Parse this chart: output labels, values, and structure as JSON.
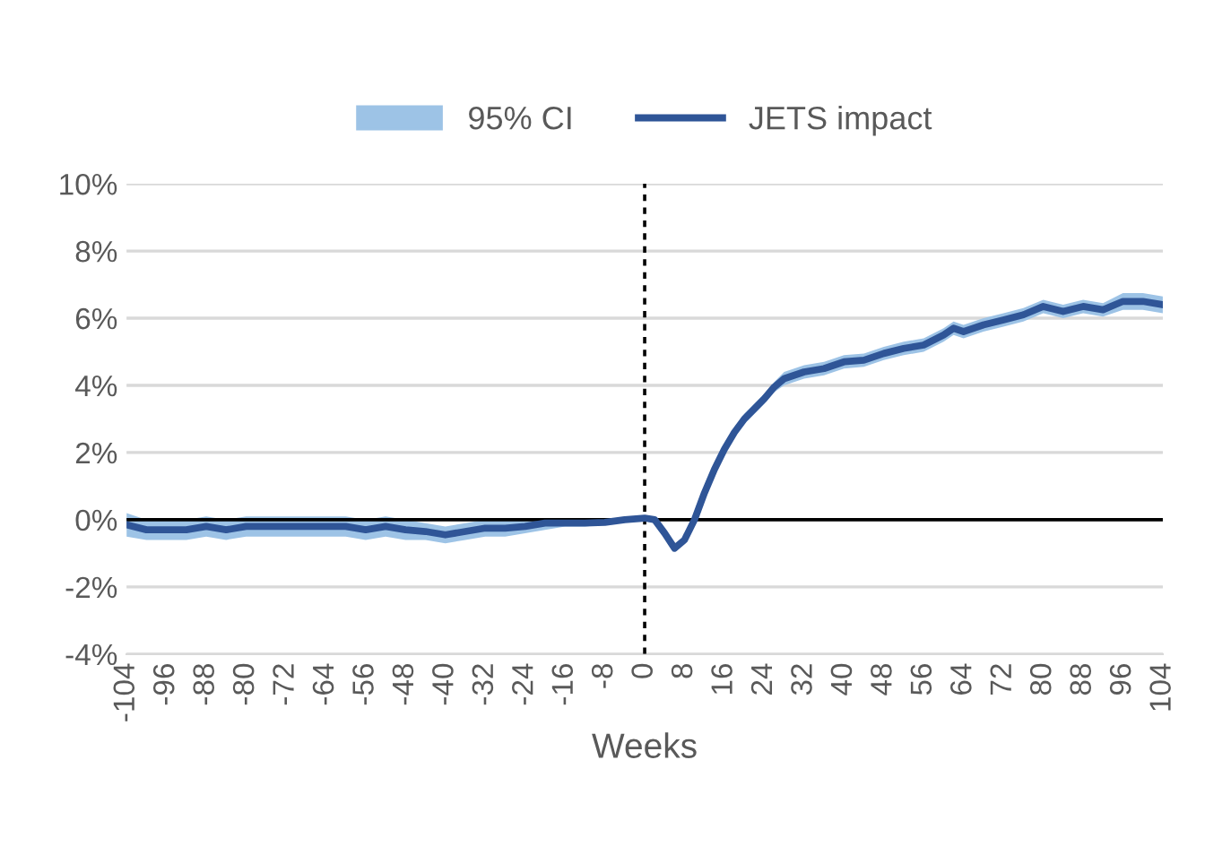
{
  "chart_data": {
    "type": "line",
    "xlabel": "Weeks",
    "x": [
      -104,
      -100,
      -96,
      -92,
      -88,
      -84,
      -80,
      -76,
      -72,
      -68,
      -64,
      -60,
      -56,
      -52,
      -48,
      -44,
      -40,
      -36,
      -32,
      -28,
      -24,
      -20,
      -16,
      -12,
      -8,
      -4,
      0,
      2,
      4,
      6,
      8,
      10,
      12,
      14,
      16,
      18,
      20,
      22,
      24,
      26,
      28,
      30,
      32,
      36,
      40,
      44,
      48,
      52,
      56,
      60,
      62,
      64,
      68,
      72,
      76,
      80,
      84,
      88,
      92,
      96,
      100,
      104
    ],
    "series": [
      {
        "name": "JETS impact",
        "color": "#2f5597",
        "values": [
          -0.15,
          -0.3,
          -0.3,
          -0.3,
          -0.2,
          -0.3,
          -0.2,
          -0.2,
          -0.2,
          -0.2,
          -0.2,
          -0.2,
          -0.3,
          -0.2,
          -0.3,
          -0.35,
          -0.45,
          -0.35,
          -0.25,
          -0.25,
          -0.2,
          -0.1,
          -0.1,
          -0.1,
          -0.08,
          0.0,
          0.05,
          0.0,
          -0.4,
          -0.85,
          -0.6,
          0.0,
          0.8,
          1.5,
          2.1,
          2.6,
          3.0,
          3.3,
          3.6,
          3.95,
          4.2,
          4.3,
          4.4,
          4.5,
          4.7,
          4.75,
          4.95,
          5.1,
          5.2,
          5.5,
          5.7,
          5.6,
          5.8,
          5.95,
          6.1,
          6.35,
          6.2,
          6.35,
          6.25,
          6.5,
          6.5,
          6.4
        ],
        "lower": [
          -0.5,
          -0.6,
          -0.6,
          -0.6,
          -0.5,
          -0.6,
          -0.5,
          -0.5,
          -0.5,
          -0.5,
          -0.5,
          -0.5,
          -0.6,
          -0.5,
          -0.6,
          -0.6,
          -0.7,
          -0.6,
          -0.5,
          -0.5,
          -0.4,
          -0.3,
          -0.2,
          -0.2,
          -0.15,
          -0.05,
          0.0,
          -0.05,
          -0.45,
          -0.9,
          -0.65,
          -0.1,
          0.65,
          1.35,
          1.95,
          2.45,
          2.85,
          3.15,
          3.45,
          3.8,
          4.0,
          4.1,
          4.2,
          4.3,
          4.5,
          4.55,
          4.75,
          4.9,
          5.0,
          5.3,
          5.5,
          5.4,
          5.6,
          5.75,
          5.9,
          6.15,
          6.0,
          6.15,
          6.05,
          6.25,
          6.25,
          6.15
        ],
        "upper": [
          0.2,
          0.0,
          0.0,
          0.0,
          0.1,
          0.0,
          0.1,
          0.1,
          0.1,
          0.1,
          0.1,
          0.1,
          0.0,
          0.1,
          0.0,
          -0.1,
          -0.2,
          -0.1,
          0.0,
          0.0,
          0.0,
          0.05,
          0.0,
          0.0,
          0.0,
          0.05,
          0.1,
          0.05,
          -0.35,
          -0.8,
          -0.55,
          0.1,
          0.95,
          1.65,
          2.25,
          2.75,
          3.15,
          3.45,
          3.75,
          4.1,
          4.4,
          4.5,
          4.6,
          4.7,
          4.9,
          4.95,
          5.15,
          5.3,
          5.4,
          5.7,
          5.9,
          5.8,
          6.0,
          6.15,
          6.3,
          6.55,
          6.4,
          6.55,
          6.45,
          6.75,
          6.75,
          6.65
        ]
      }
    ],
    "annotations": [
      "95% CI"
    ],
    "xlim": [
      -104,
      104
    ],
    "xticks": [
      -104,
      -96,
      -88,
      -80,
      -72,
      -64,
      -56,
      -48,
      -40,
      -32,
      -24,
      -16,
      -8,
      0,
      8,
      16,
      24,
      32,
      40,
      48,
      56,
      64,
      72,
      80,
      88,
      96,
      104
    ],
    "ylim": [
      -4,
      10
    ],
    "yticks": [
      {
        "value": -4,
        "label": "-4%"
      },
      {
        "value": -2,
        "label": "-2%"
      },
      {
        "value": 0,
        "label": "0%"
      },
      {
        "value": 2,
        "label": "2%"
      },
      {
        "value": 4,
        "label": "4%"
      },
      {
        "value": 6,
        "label": "6%"
      },
      {
        "value": 8,
        "label": "8%"
      },
      {
        "value": 10,
        "label": "10%"
      }
    ],
    "ref_lines": [
      {
        "axis": "x",
        "value": 0,
        "label": null,
        "color": "#000000",
        "line_style": "dotted"
      },
      {
        "axis": "y",
        "value": 0,
        "label": null,
        "color": "#000000",
        "line_style": "solid"
      }
    ],
    "grid": "y",
    "legend": "top"
  }
}
